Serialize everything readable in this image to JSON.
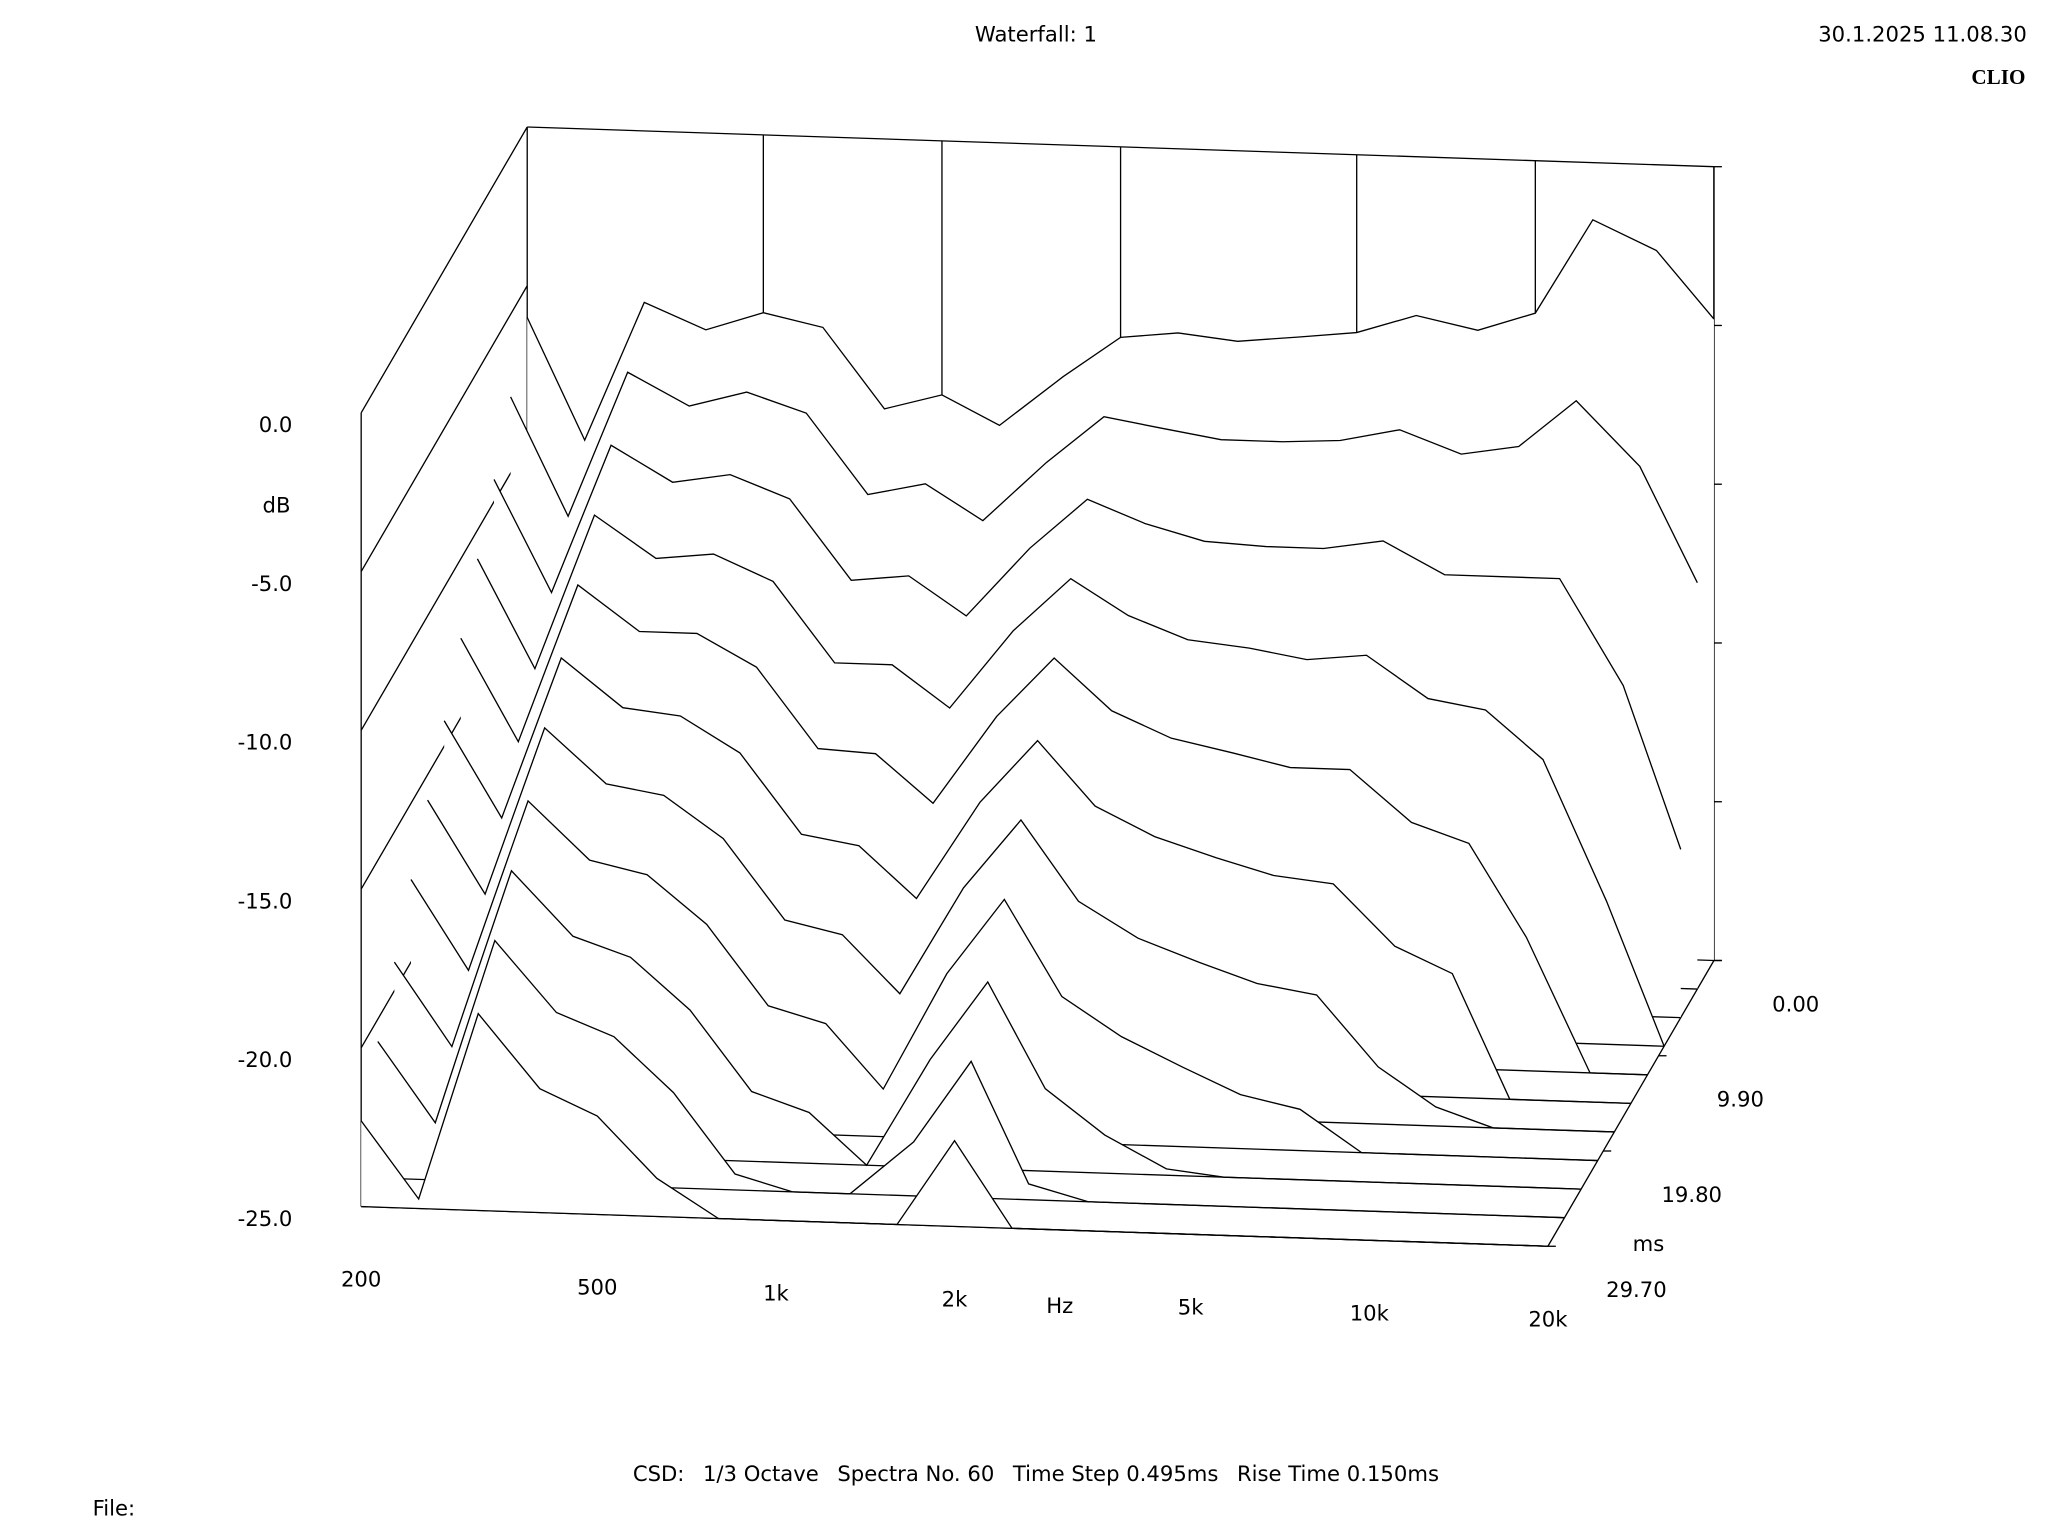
{
  "chart_data": {
    "type": "waterfall",
    "title": "Waterfall: 1",
    "timestamp": "30.1.2025 11.08.30",
    "brand": "CLIO",
    "ylabel": "dB",
    "xlabel": "Hz",
    "zlabel": "ms",
    "footer": [
      "CSD:",
      "1/3 Octave",
      "Spectra No. 60",
      "Time Step 0.495ms",
      "Rise Time 0.150ms"
    ],
    "file_label": "File:",
    "log_x": true,
    "color": "#000000",
    "xlim": [
      200,
      20000
    ],
    "xticks": [
      200,
      500,
      {
        "value": 1000,
        "label": "1k"
      },
      {
        "value": 2000,
        "label": "2k"
      },
      {
        "value": 5000,
        "label": "5k"
      },
      {
        "value": 10000,
        "label": "10k"
      },
      {
        "value": 20000,
        "label": "20k"
      }
    ],
    "ylim": [
      -25,
      0
    ],
    "yticks": [
      {
        "value": 0,
        "label": "0.0"
      },
      {
        "value": -5,
        "label": "-5.0"
      },
      {
        "value": -10,
        "label": "-10.0"
      },
      {
        "value": -15,
        "label": "-15.0"
      },
      {
        "value": -20,
        "label": "-20.0"
      },
      {
        "value": -25,
        "label": "-25.0"
      }
    ],
    "zlim": [
      0,
      29.7
    ],
    "zticks": [
      {
        "value": 0,
        "label": "0.00"
      },
      {
        "value": 9.9,
        "label": "9.90"
      },
      {
        "value": 19.8,
        "label": "19.80"
      },
      {
        "value": 29.7,
        "label": "29.70"
      }
    ],
    "x": [
      200,
      250,
      315,
      400,
      500,
      630,
      800,
      1000,
      1250,
      1600,
      2000,
      2500,
      3150,
      4000,
      5000,
      6300,
      8000,
      10000,
      12500,
      16000,
      20000
    ],
    "z": [
      0,
      2.97,
      5.94,
      8.91,
      11.88,
      14.85,
      17.82,
      20.79,
      23.76,
      26.73,
      29.7
    ],
    "series": [
      {
        "values": [
          -6,
          -9.8,
          -5.4,
          -6.2,
          -5.6,
          -6,
          -8.5,
          -8,
          -8.9,
          -7.3,
          -6,
          -5.8,
          -6,
          -5.8,
          -5.6,
          -5,
          -5.4,
          -4.8,
          -1.8,
          -2.7,
          -4.8
        ]
      },
      {
        "values": [
          -7.6,
          -11.3,
          -6.7,
          -7.7,
          -7.2,
          -7.8,
          -10.3,
          -9.9,
          -11,
          -9.1,
          -7.6,
          -7.9,
          -8.2,
          -8.2,
          -8.1,
          -7.7,
          -8.4,
          -8.1,
          -6.6,
          -8.6,
          -12.2
        ]
      },
      {
        "values": [
          -9.3,
          -12.8,
          -8.1,
          -9.2,
          -8.9,
          -9.6,
          -12.1,
          -11.9,
          -13.1,
          -10.9,
          -9.3,
          -10,
          -10.5,
          -10.6,
          -10.6,
          -10.3,
          -11.3,
          -11.3,
          -11.3,
          -14.6,
          -19.7
        ]
      },
      {
        "values": [
          -10.9,
          -14.3,
          -9.4,
          -10.7,
          -10.5,
          -11.3,
          -13.8,
          -13.8,
          -15.1,
          -12.6,
          -10.9,
          -12,
          -12.7,
          -12.9,
          -13.2,
          -13,
          -14.3,
          -14.6,
          -16.1,
          -20.5,
          -25
        ]
      },
      {
        "values": [
          -12.5,
          -15.7,
          -10.7,
          -12.1,
          -12.1,
          -13.1,
          -15.6,
          -15.7,
          -17.2,
          -14.4,
          -12.5,
          -14.1,
          -14.9,
          -15.3,
          -15.7,
          -15.7,
          -17.3,
          -17.9,
          -20.8,
          -25,
          -25
        ]
      },
      {
        "values": [
          -14.2,
          -17.2,
          -12.1,
          -13.6,
          -13.8,
          -14.9,
          -17.4,
          -17.7,
          -19.3,
          -16.2,
          -14.2,
          -16.2,
          -17.1,
          -17.7,
          -18.2,
          -18.4,
          -20.3,
          -21.1,
          -25,
          -25,
          -25
        ]
      },
      {
        "values": [
          -15.8,
          -18.7,
          -13.4,
          -15.1,
          -15.4,
          -16.7,
          -19.2,
          -19.6,
          -21.4,
          -18,
          -15.8,
          -18.3,
          -19.4,
          -20.1,
          -20.7,
          -21,
          -23.2,
          -24.4,
          -25,
          -25,
          -25
        ]
      },
      {
        "values": [
          -17.4,
          -20.2,
          -14.8,
          -16.6,
          -17,
          -18.5,
          -21,
          -21.5,
          -23.5,
          -19.8,
          -17.4,
          -20.4,
          -21.6,
          -22.5,
          -23.3,
          -23.7,
          -25,
          -25,
          -25,
          -25,
          -25
        ]
      },
      {
        "values": [
          -19.1,
          -21.7,
          -16.1,
          -18.1,
          -18.7,
          -20.3,
          -22.8,
          -23.4,
          -25,
          -21.6,
          -19.1,
          -22.4,
          -23.8,
          -24.8,
          -25,
          -25,
          -25,
          -25,
          -25,
          -25,
          -25
        ]
      },
      {
        "values": [
          -20.7,
          -23.2,
          -17.4,
          -19.6,
          -20.3,
          -22,
          -24.5,
          -25,
          -25,
          -23.3,
          -20.7,
          -24.5,
          -25,
          -25,
          -25,
          -25,
          -25,
          -25,
          -25,
          -25,
          -25
        ]
      },
      {
        "values": [
          -22.3,
          -24.7,
          -18.8,
          -21.1,
          -21.9,
          -23.8,
          -25,
          -25,
          -25,
          -25,
          -22.3,
          -25,
          -25,
          -25,
          -25,
          -25,
          -25,
          -25,
          -25,
          -25,
          -25
        ]
      }
    ]
  }
}
